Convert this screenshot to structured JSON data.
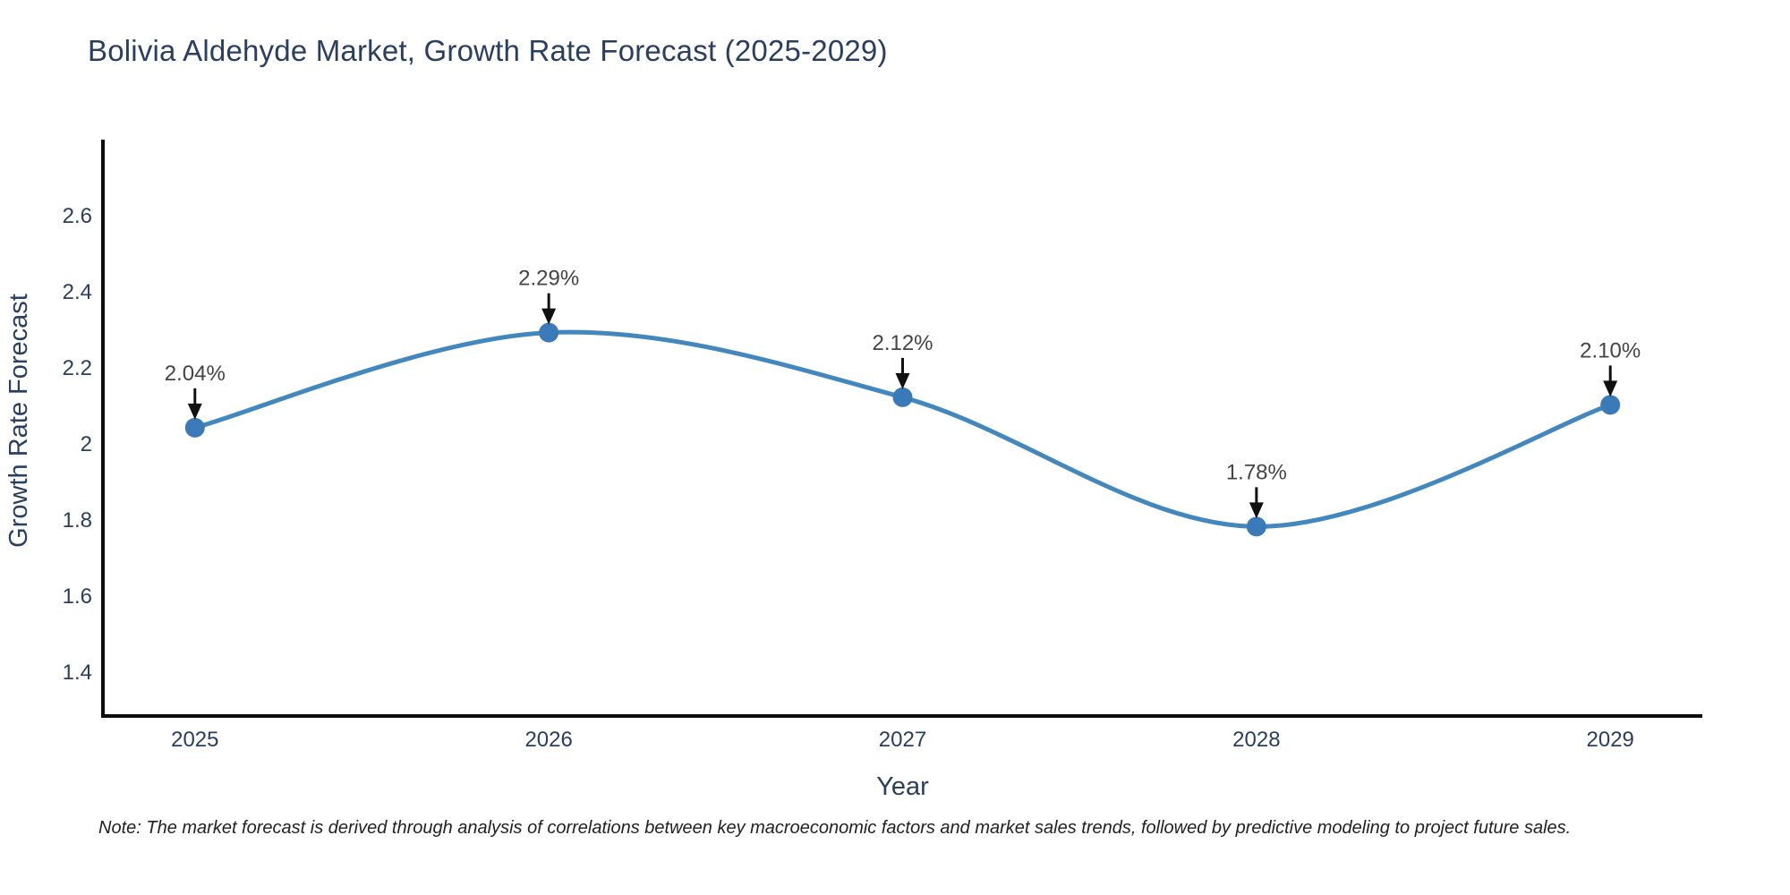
{
  "title": "Bolivia Aldehyde Market, Growth Rate Forecast (2025-2029)",
  "note": "Note: The market forecast is derived through analysis of correlations between key macroeconomic factors and market sales trends, followed by predictive modeling to project future sales.",
  "chart_data": {
    "type": "line",
    "line_shape": "spline",
    "title": "Bolivia Aldehyde Market, Growth Rate Forecast (2025-2029)",
    "xlabel": "Year",
    "ylabel": "Growth Rate Forecast",
    "x": [
      2025,
      2026,
      2027,
      2028,
      2029
    ],
    "values": [
      2.04,
      2.29,
      2.12,
      1.78,
      2.1
    ],
    "point_labels": [
      "2.04%",
      "2.29%",
      "2.12%",
      "1.78%",
      "2.10%"
    ],
    "xtick_labels": [
      "2025",
      "2026",
      "2027",
      "2028",
      "2029"
    ],
    "yticks": [
      1.4,
      1.6,
      1.8,
      2,
      2.2,
      2.4,
      2.6
    ],
    "ytick_labels": [
      "1.4",
      "1.6",
      "1.8",
      "2",
      "2.2",
      "2.4",
      "2.6"
    ],
    "xlim": [
      2024.74,
      2029.26
    ],
    "ylim": [
      1.282,
      2.788
    ],
    "grid": false,
    "legend": "none",
    "colors": {
      "line": "#4287bd",
      "marker": "#3a7ab8",
      "axis": "#0d0d0d",
      "title_text": "#2a3f5f",
      "axis_text": "#2a3f5f",
      "annotation_text": "#444444",
      "arrow": "#111111",
      "note_text": "#222222",
      "background": "#ffffff"
    }
  }
}
